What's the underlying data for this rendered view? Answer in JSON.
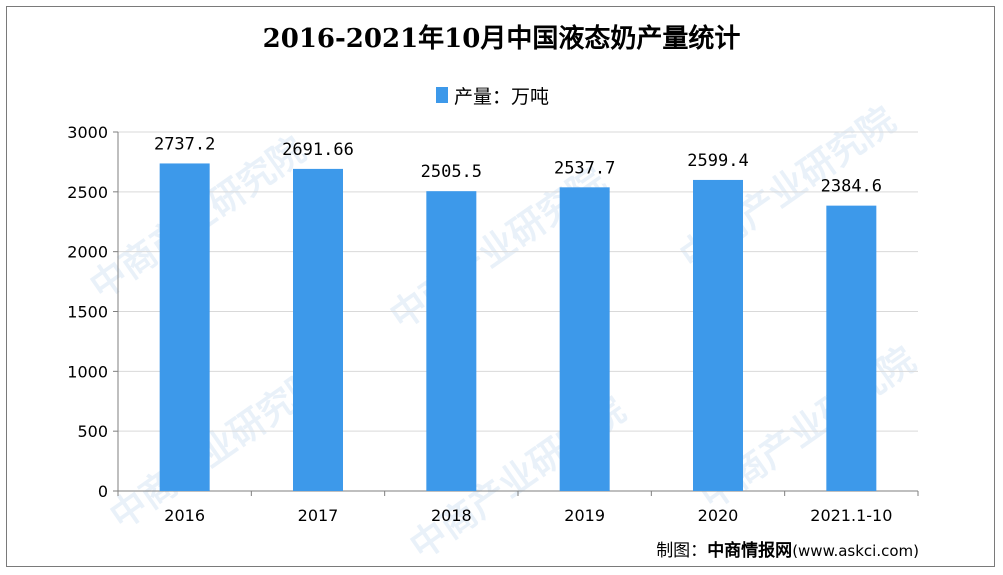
{
  "watermark_text": "中商产业研究院",
  "source": {
    "label": "制图：",
    "brand": "中商情报网",
    "url": "(www.askci.com)"
  },
  "colors": {
    "bar": "#3d99ea",
    "grid": "#d9d9d9",
    "axis": "#7f7f7f"
  },
  "chart_data": {
    "type": "bar",
    "title": "2016-2021年10月中国液态奶产量统计",
    "legend": "产量：万吨",
    "legend_position": "top-center",
    "categories": [
      "2016",
      "2017",
      "2018",
      "2019",
      "2020",
      "2021.1-10"
    ],
    "values": [
      2737.2,
      2691.66,
      2505.5,
      2537.7,
      2599.4,
      2384.6
    ],
    "value_labels": [
      "2737.2",
      "2691.66",
      "2505.5",
      "2537.7",
      "2599.4",
      "2384.6"
    ],
    "ylim": [
      0,
      3000
    ],
    "yticks": [
      0,
      500,
      1000,
      1500,
      2000,
      2500,
      3000
    ],
    "grid": true,
    "xlabel": "",
    "ylabel": ""
  }
}
